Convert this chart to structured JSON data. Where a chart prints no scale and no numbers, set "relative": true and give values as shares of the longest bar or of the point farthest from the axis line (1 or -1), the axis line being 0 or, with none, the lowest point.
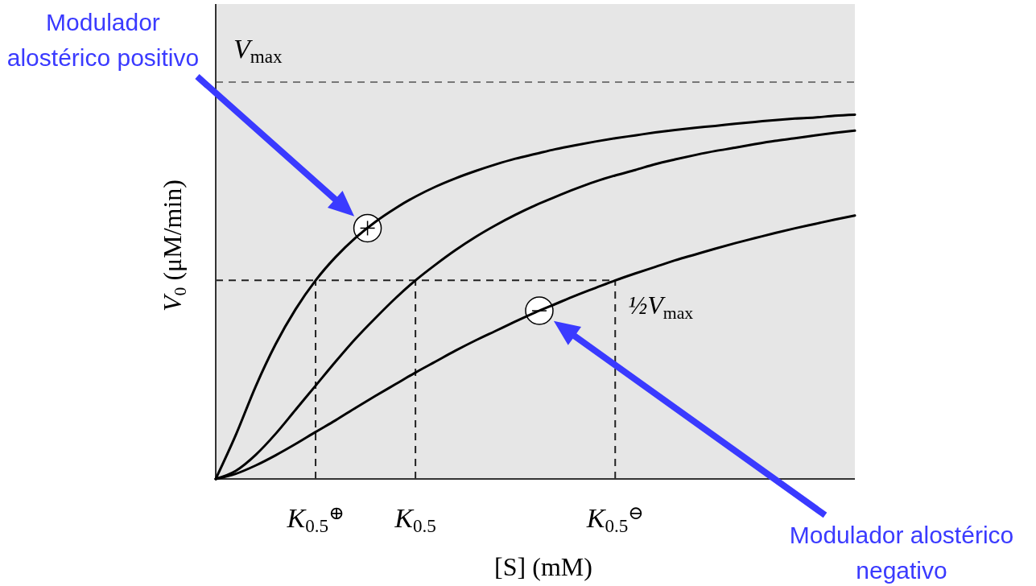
{
  "chart_data": {
    "type": "line",
    "relative": true,
    "xlabel": "[S] (mM)",
    "ylabel": "V$_{0}$ (μM/min)",
    "categories": [
      null,
      null,
      null,
      null,
      null,
      "K$_{0.5}$$^{⊕}$",
      null,
      null,
      null,
      null,
      "K$_{0.5}$",
      null,
      null,
      null,
      null,
      null,
      null,
      null,
      null,
      null,
      "K$_{0.5}$$^{⊖}$",
      null,
      null,
      null,
      null,
      null,
      null,
      null,
      null,
      null,
      null,
      null,
      null
    ],
    "series": [
      {
        "color": "#000000",
        "values": [
          0,
          0.12,
          0.254,
          0.37,
          0.466,
          0.545,
          0.609,
          0.662,
          0.706,
          0.743,
          0.775,
          0.802,
          0.825,
          0.845,
          0.863,
          0.879,
          0.892,
          0.905,
          0.916,
          0.926,
          0.935,
          0.943,
          0.951,
          0.958,
          0.964,
          0.969,
          0.975,
          0.98,
          0.985,
          0.989,
          0.992,
          0.997,
          1
        ]
      },
      {
        "color": "#000000",
        "values": [
          0,
          0.022,
          0.066,
          0.124,
          0.19,
          0.256,
          0.322,
          0.385,
          0.442,
          0.496,
          0.545,
          0.588,
          0.628,
          0.664,
          0.696,
          0.725,
          0.751,
          0.774,
          0.796,
          0.816,
          0.833,
          0.848,
          0.864,
          0.877,
          0.889,
          0.9,
          0.909,
          0.919,
          0.928,
          0.935,
          0.943,
          0.95,
          0.956
        ]
      },
      {
        "color": "#000000",
        "values": [
          0,
          0.014,
          0.037,
          0.065,
          0.096,
          0.129,
          0.161,
          0.195,
          0.228,
          0.26,
          0.292,
          0.322,
          0.352,
          0.38,
          0.406,
          0.432,
          0.457,
          0.48,
          0.503,
          0.524,
          0.545,
          0.564,
          0.582,
          0.6,
          0.616,
          0.632,
          0.647,
          0.661,
          0.675,
          0.688,
          0.7,
          0.712,
          0.723
        ]
      }
    ],
    "ref_lines": [
      {
        "axis": "y",
        "value": 1.089,
        "label": "V$_{max}$",
        "color": "#777777",
        "line_style": "dashed"
      },
      {
        "axis": "y",
        "value": 0.545,
        "label": "½V$_{max}$",
        "color": "#222222",
        "line_style": "dashed"
      },
      {
        "axis": "x",
        "value": "K$_{0.5}$$^{⊕}$",
        "color": "#222222",
        "line_style": "dashed"
      },
      {
        "axis": "x",
        "value": "K$_{0.5}$",
        "color": "#222222",
        "line_style": "dashed"
      },
      {
        "axis": "x",
        "value": "K$_{0.5}$$^{⊖}$",
        "color": "#222222",
        "line_style": "dashed"
      }
    ],
    "annotations": [
      "Modulador alostérico positivo",
      "Modulador alostérico negativo"
    ]
  }
}
